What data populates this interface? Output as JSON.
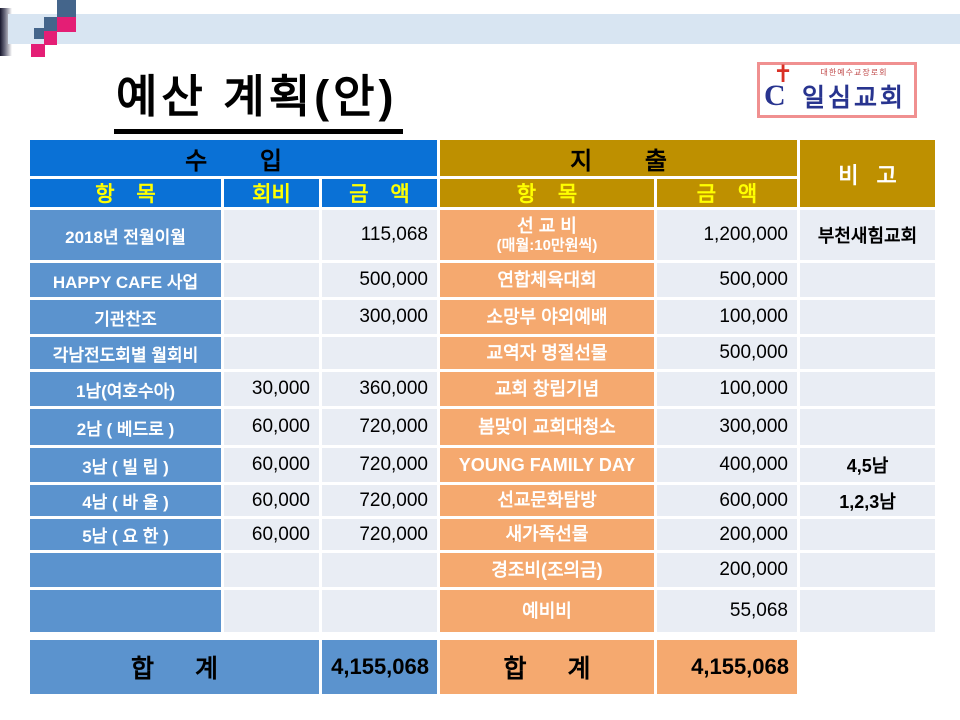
{
  "slide_title": "예산 계획(안)",
  "logo": {
    "denomination": "대한예수교장로회",
    "church_name": "일심교회"
  },
  "table": {
    "header": {
      "income_group": "수 입",
      "expense_group": "지 출",
      "note_col": "비 고",
      "income_item": "항 목",
      "income_fee": "회비",
      "income_amount": "금 액",
      "expense_item": "항 목",
      "expense_amount": "금 액"
    },
    "rows": [
      {
        "income_item": "2018년 전월이월",
        "fee": "",
        "income_amount": "115,068",
        "expense_item": "선 교 비",
        "expense_item_sub": "(매월:10만원씩)",
        "expense_amount": "1,200,000",
        "note": "부천새힘교회"
      },
      {
        "income_item": "HAPPY CAFE 사업",
        "fee": "",
        "income_amount": "500,000",
        "expense_item": "연합체육대회",
        "expense_item_sub": "",
        "expense_amount": "500,000",
        "note": ""
      },
      {
        "income_item": "기관찬조",
        "fee": "",
        "income_amount": "300,000",
        "expense_item": "소망부 야외예배",
        "expense_item_sub": "",
        "expense_amount": "100,000",
        "note": ""
      },
      {
        "income_item": "각남전도회별 월회비",
        "fee": "",
        "income_amount": "",
        "expense_item": "교역자 명절선물",
        "expense_item_sub": "",
        "expense_amount": "500,000",
        "note": ""
      },
      {
        "income_item": "1남(여호수아)",
        "fee": "30,000",
        "income_amount": "360,000",
        "expense_item": "교회 창립기념",
        "expense_item_sub": "",
        "expense_amount": "100,000",
        "note": ""
      },
      {
        "income_item": "2남 ( 베드로 )",
        "fee": "60,000",
        "income_amount": "720,000",
        "expense_item": "봄맞이 교회대청소",
        "expense_item_sub": "",
        "expense_amount": "300,000",
        "note": ""
      },
      {
        "income_item": "3남 ( 빌 립 )",
        "fee": "60,000",
        "income_amount": "720,000",
        "expense_item": "YOUNG FAMILY DAY",
        "expense_item_sub": "",
        "expense_amount": "400,000",
        "note": "4,5남"
      },
      {
        "income_item": "4남 ( 바 울 )",
        "fee": "60,000",
        "income_amount": "720,000",
        "expense_item": "선교문화탐방",
        "expense_item_sub": "",
        "expense_amount": "600,000",
        "note": "1,2,3남"
      },
      {
        "income_item": "5남 ( 요 한 )",
        "fee": "60,000",
        "income_amount": "720,000",
        "expense_item": "새가족선물",
        "expense_item_sub": "",
        "expense_amount": "200,000",
        "note": ""
      },
      {
        "income_item": "",
        "fee": "",
        "income_amount": "",
        "expense_item": "경조비(조의금)",
        "expense_item_sub": "",
        "expense_amount": "200,000",
        "note": ""
      },
      {
        "income_item": "",
        "fee": "",
        "income_amount": "",
        "expense_item": "예비비",
        "expense_item_sub": "",
        "expense_amount": "55,068",
        "note": ""
      }
    ],
    "total": {
      "income_label": "합 계",
      "income_amount": "4,155,068",
      "expense_label": "합 계",
      "expense_amount": "4,155,068"
    }
  },
  "colors": {
    "header_blue": "#0A71D6",
    "header_gold": "#BE9000",
    "body_blue": "#5B93CE",
    "body_orange": "#F5A96F",
    "light_cell": "#E9EDF4",
    "yellow_text": "#FFFF00",
    "band_blue": "#D8E5F2",
    "deco_pink": "#E41E75",
    "deco_navy": "#44658B",
    "logo_border": "#F09090",
    "logo_navy": "#28348F",
    "logo_red": "#C04A4A",
    "cross_red": "#D93025"
  }
}
